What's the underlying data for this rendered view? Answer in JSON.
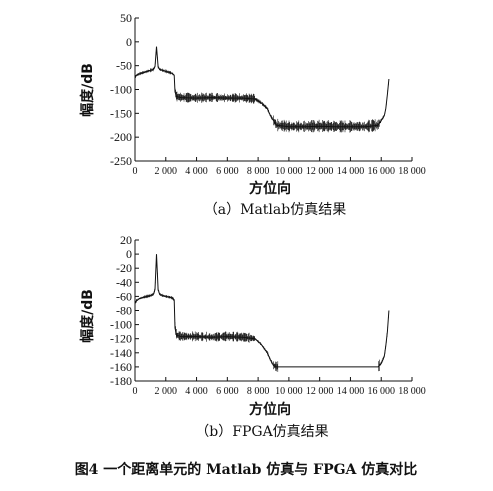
{
  "figure_caption": "图4   一个距离单元的 Matlab 仿真与 FPGA 仿真对比",
  "colors": {
    "line": "#111111",
    "axis": "#111111",
    "background": "#ffffff"
  },
  "chart_data": [
    {
      "type": "line",
      "caption": "（a）Matlab仿真结果",
      "xlabel": "方位向",
      "ylabel": "幅度/dB",
      "xlim": [
        0,
        18000
      ],
      "ylim": [
        -250,
        50
      ],
      "xticks": [
        0,
        2000,
        4000,
        6000,
        8000,
        10000,
        12000,
        14000,
        16000,
        18000
      ],
      "xtick_labels": [
        "0",
        "2 000",
        "4 000",
        "6 000",
        "8 000",
        "10 000",
        "12 000",
        "14 000",
        "16 000",
        "18 000"
      ],
      "yticks": [
        50,
        0,
        -50,
        -100,
        -150,
        -200,
        -250
      ],
      "ytick_labels": [
        "50",
        "0",
        "-50",
        "-100",
        "-150",
        "-200",
        "-250"
      ],
      "grid": false,
      "series": [
        {
          "x": [
            0,
            100,
            300,
            600,
            800,
            1000,
            1200,
            1300,
            1400,
            1500,
            1600,
            1800,
            2000,
            2200,
            2400,
            2550,
            2600,
            2700,
            3000,
            4000,
            5000,
            6000,
            7000,
            7800,
            8200,
            8600,
            8800,
            9000,
            9200,
            10000,
            11000,
            12000,
            13000,
            14000,
            15000,
            15800,
            16000,
            16200,
            16300,
            16400,
            16500
          ],
          "y": [
            -75,
            -70,
            -67,
            -64,
            -62,
            -60,
            -58,
            -52,
            -10,
            -52,
            -58,
            -60,
            -62,
            -64,
            -66,
            -70,
            -105,
            -115,
            -117,
            -118,
            -117,
            -118,
            -118,
            -120,
            -128,
            -140,
            -155,
            -165,
            -175,
            -178,
            -178,
            -177,
            -178,
            -178,
            -178,
            -175,
            -165,
            -155,
            -140,
            -110,
            -78
          ]
        }
      ]
    },
    {
      "type": "line",
      "caption": "（b）FPGA仿真结果",
      "xlabel": "方位向",
      "ylabel": "幅度/dB",
      "xlim": [
        0,
        18000
      ],
      "ylim": [
        -180,
        20
      ],
      "xticks": [
        0,
        2000,
        4000,
        6000,
        8000,
        10000,
        12000,
        14000,
        16000,
        18000
      ],
      "xtick_labels": [
        "0",
        "2 000",
        "4 000",
        "6 000",
        "8 000",
        "10 000",
        "12 000",
        "14 000",
        "16 000",
        "18 000"
      ],
      "yticks": [
        20,
        0,
        -20,
        -40,
        -60,
        -80,
        -100,
        -120,
        -140,
        -160,
        -180
      ],
      "ytick_labels": [
        "20",
        "0",
        "-20",
        "-40",
        "-60",
        "-80",
        "-100",
        "-120",
        "-140",
        "-160",
        "-180"
      ],
      "grid": false,
      "series": [
        {
          "x": [
            0,
            100,
            300,
            600,
            800,
            1000,
            1200,
            1300,
            1400,
            1500,
            1600,
            1800,
            2000,
            2200,
            2400,
            2550,
            2600,
            2700,
            3000,
            4000,
            5000,
            6000,
            7000,
            7800,
            8200,
            8600,
            8800,
            9000,
            9200,
            10000,
            11000,
            12000,
            13000,
            14000,
            15000,
            15800,
            16000,
            16200,
            16300,
            16400,
            16500
          ],
          "y": [
            -70,
            -66,
            -63,
            -61,
            -60,
            -59,
            -57,
            -50,
            0,
            -50,
            -57,
            -59,
            -60,
            -61,
            -62,
            -65,
            -105,
            -115,
            -117,
            -117,
            -118,
            -117,
            -118,
            -120,
            -128,
            -140,
            -150,
            -158,
            -160,
            -160,
            -160,
            -160,
            -160,
            -160,
            -160,
            -160,
            -155,
            -145,
            -130,
            -110,
            -80
          ]
        }
      ]
    }
  ]
}
